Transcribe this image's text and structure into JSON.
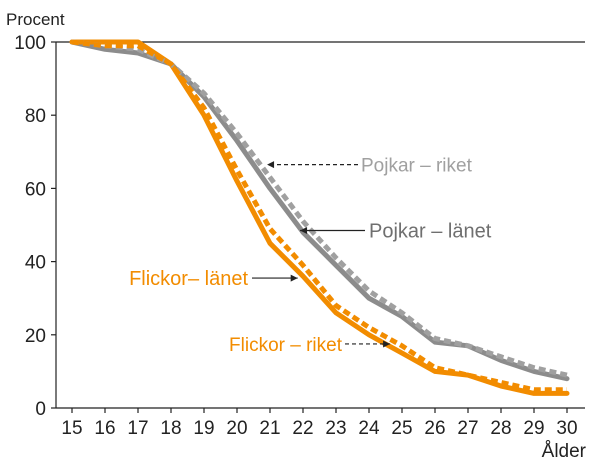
{
  "chart_data": {
    "type": "line",
    "ylabel": "Procent",
    "xlabel": "Ålder",
    "x": [
      15,
      16,
      17,
      18,
      19,
      20,
      21,
      22,
      23,
      24,
      25,
      26,
      27,
      28,
      29,
      30
    ],
    "ylim": [
      0,
      100
    ],
    "yticks": [
      0,
      20,
      40,
      60,
      80,
      100
    ],
    "grid": false,
    "series": [
      {
        "name": "Pojkar – riket",
        "color": "#a0a0a0",
        "dash": true,
        "values": [
          100,
          99,
          98,
          94,
          86,
          75,
          63,
          51,
          41,
          32,
          26,
          19,
          17,
          14,
          11,
          9
        ]
      },
      {
        "name": "Pojkar – länet",
        "color": "#8c8c8c",
        "dash": false,
        "values": [
          100,
          98,
          97,
          94,
          85,
          73,
          60,
          48,
          39,
          30,
          25,
          18,
          17,
          13,
          10,
          8
        ]
      },
      {
        "name": "Flickor – riket",
        "color": "#f28c00",
        "dash": true,
        "values": [
          100,
          99,
          99,
          94,
          82,
          65,
          49,
          39,
          28,
          22,
          17,
          11,
          9,
          7,
          5,
          5
        ]
      },
      {
        "name": "Flickor– länet",
        "color": "#f28c00",
        "dash": false,
        "values": [
          100,
          100,
          100,
          94,
          80,
          62,
          45,
          36,
          26,
          20,
          15,
          10,
          9,
          6,
          4,
          4
        ]
      }
    ],
    "annotations": [
      {
        "text": "Pojkar – riket",
        "series": 0,
        "x": 20.85,
        "y": 66.5,
        "color": "#a0a0a0",
        "size": 19
      },
      {
        "text": "Pojkar – länet",
        "series": 1,
        "x": 21.85,
        "y": 48.5,
        "color": "#6f6f6f",
        "size": 20
      },
      {
        "text": "Flickor– länet",
        "series": 3,
        "x": 21.9,
        "y": 35.5,
        "color": "#f28c00",
        "size": 20
      },
      {
        "text": "Flickor – riket",
        "series": 2,
        "x": 24.7,
        "y": 17.5,
        "color": "#f28c00",
        "size": 19
      }
    ]
  }
}
